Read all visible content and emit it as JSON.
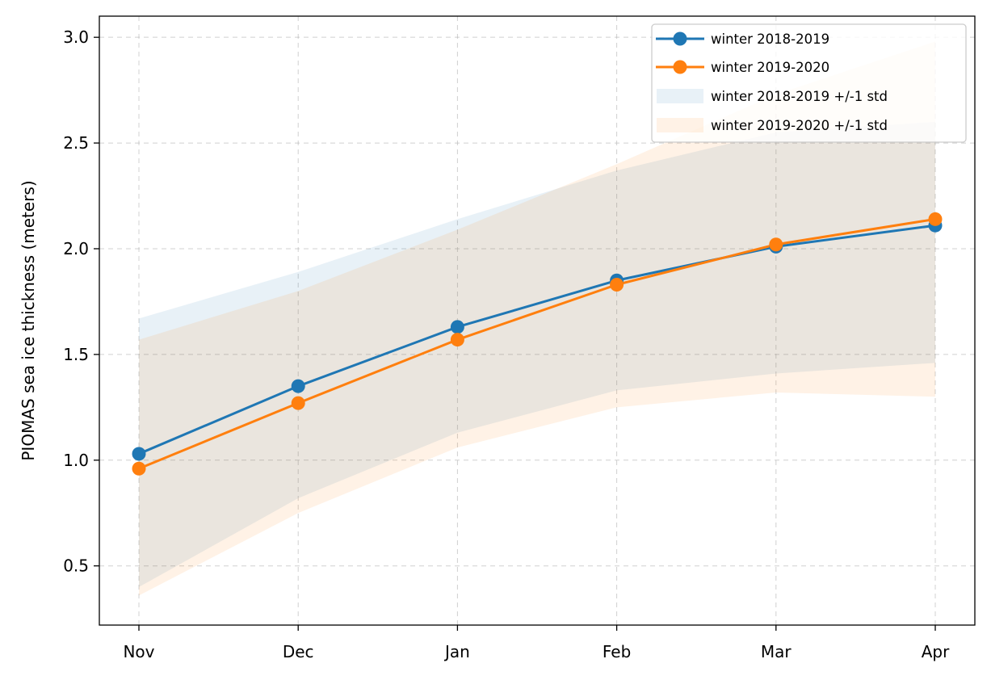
{
  "chart_data": {
    "type": "line",
    "categories": [
      "Nov",
      "Dec",
      "Jan",
      "Feb",
      "Mar",
      "Apr"
    ],
    "ylabel": "PIOMAS sea ice thickness (meters)",
    "xlabel": "",
    "ylim": [
      0.22,
      3.1
    ],
    "yticks": [
      0.5,
      1.0,
      1.5,
      2.0,
      2.5,
      3.0
    ],
    "ytick_labels": [
      "0.5",
      "1.0",
      "1.5",
      "2.0",
      "2.5",
      "3.0"
    ],
    "grid": true,
    "legend_position": "top-right",
    "series": [
      {
        "name": "winter 2018-2019",
        "color": "#1f77b4",
        "values": [
          1.03,
          1.35,
          1.63,
          1.85,
          2.01,
          2.11
        ],
        "std_label": "winter 2018-2019 +/-1 std",
        "std_upper": [
          1.67,
          1.89,
          2.14,
          2.37,
          2.55,
          2.6
        ],
        "std_lower": [
          0.4,
          0.82,
          1.13,
          1.33,
          1.41,
          1.46
        ]
      },
      {
        "name": "winter 2019-2020",
        "color": "#ff7f0e",
        "values": [
          0.96,
          1.27,
          1.57,
          1.83,
          2.02,
          2.14
        ],
        "std_label": "winter 2019-2020 +/-1 std",
        "std_upper": [
          1.57,
          1.8,
          2.09,
          2.4,
          2.73,
          2.98
        ],
        "std_lower": [
          0.36,
          0.75,
          1.06,
          1.25,
          1.32,
          1.3
        ]
      }
    ]
  }
}
